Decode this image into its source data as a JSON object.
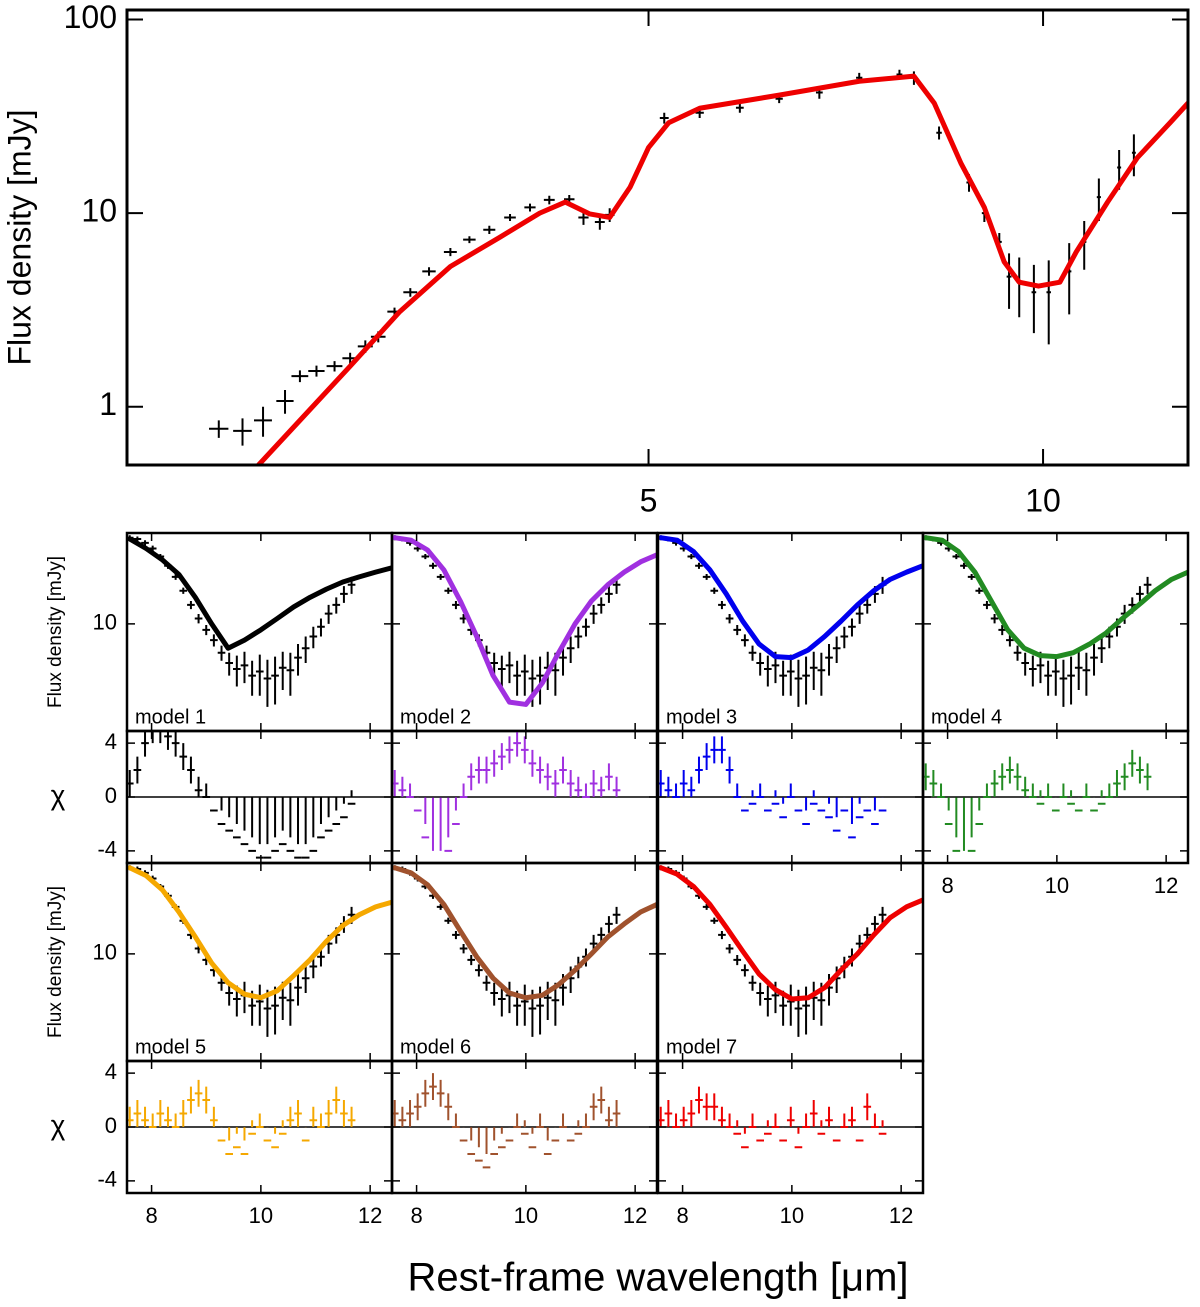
{
  "chart_data": [
    {
      "type": "sed",
      "ylabel": "Flux density [mJy]",
      "xscale": "log",
      "yscale": "log",
      "xlim": [
        2,
        12.9
      ],
      "ylim": [
        0.5,
        112
      ],
      "xticks": [
        5,
        10
      ],
      "yticks": [
        1,
        10,
        100
      ],
      "observed": {
        "color": "#000000",
        "xerr": 0.04,
        "x": [
          2.35,
          2.45,
          2.54,
          2.64,
          2.71,
          2.79,
          2.88,
          2.96,
          3.04,
          3.11,
          3.2,
          3.29,
          3.4,
          3.53,
          3.65,
          3.78,
          3.92,
          4.06,
          4.2,
          4.35,
          4.46,
          4.59,
          4.67,
          5.14,
          5.47,
          5.87,
          6.29,
          6.75,
          7.24,
          7.77,
          7.97,
          8.33,
          8.78,
          9.02,
          9.26,
          9.42,
          9.59,
          9.84,
          10.1,
          10.47,
          10.75,
          11.03,
          11.43,
          11.73
        ],
        "values": [
          0.77,
          0.75,
          0.85,
          1.07,
          1.44,
          1.53,
          1.62,
          1.78,
          2.05,
          2.3,
          3.1,
          3.9,
          5.0,
          6.3,
          7.3,
          8.2,
          9.5,
          10.7,
          11.7,
          11.8,
          9.5,
          9.0,
          9.8,
          31,
          33,
          35,
          39,
          42,
          50,
          52,
          50,
          26,
          14.4,
          10,
          7.1,
          4.7,
          4.4,
          3.9,
          3.9,
          5.0,
          7.1,
          12.1,
          17.2,
          20.5
        ],
        "errors": [
          0.08,
          0.12,
          0.15,
          0.15,
          0.1,
          0.1,
          0.1,
          0.12,
          0.15,
          0.15,
          0.15,
          0.2,
          0.25,
          0.3,
          0.3,
          0.4,
          0.4,
          0.5,
          0.6,
          0.6,
          0.8,
          0.8,
          0.8,
          2,
          2,
          2,
          2,
          3,
          3,
          3,
          4,
          2,
          1.5,
          1,
          0.8,
          1.5,
          1.5,
          1.5,
          1.8,
          2,
          2,
          3,
          4,
          5
        ]
      },
      "model": {
        "color": "#ee0000",
        "x": [
          2.52,
          2.71,
          2.96,
          3.23,
          3.53,
          3.85,
          4.13,
          4.32,
          4.51,
          4.67,
          4.84,
          5.0,
          5.18,
          5.47,
          6.29,
          7.24,
          7.97,
          8.26,
          8.66,
          9.02,
          9.34,
          9.59,
          9.92,
          10.3,
          10.6,
          11.2,
          11.8,
          12.5,
          12.9
        ],
        "values": [
          0.5,
          0.85,
          1.62,
          3.1,
          5.3,
          7.5,
          10,
          11.4,
          9.9,
          9.5,
          13.6,
          21.8,
          29.3,
          34.8,
          40.7,
          48,
          51,
          37,
          18,
          10.7,
          5.6,
          4.4,
          4.2,
          4.4,
          6.3,
          11.4,
          19.3,
          29.3,
          37
        ]
      }
    },
    {
      "type": "model-grid",
      "xlabel": "Rest-frame wavelength [μm]",
      "ylabel": "Flux density [mJy]",
      "chi_label": "χ",
      "xlim": [
        7.55,
        12.4
      ],
      "xticks": [
        8,
        10,
        12
      ],
      "yscale": "log",
      "ylim": [
        1.5,
        50
      ],
      "yticks": [
        10
      ],
      "chi_lim": [
        -4.9,
        4.9
      ],
      "chi_ticks": [
        4,
        0,
        -4
      ],
      "chi_error": 1,
      "observed": {
        "color": "#000000",
        "xerr": 0.07,
        "x": [
          7.6,
          7.74,
          7.88,
          8.02,
          8.16,
          8.3,
          8.44,
          8.58,
          8.72,
          8.86,
          9.0,
          9.14,
          9.28,
          9.42,
          9.56,
          9.7,
          9.84,
          9.98,
          10.12,
          10.26,
          10.4,
          10.54,
          10.68,
          10.82,
          10.96,
          11.1,
          11.24,
          11.38,
          11.52,
          11.66
        ],
        "values": [
          46,
          45,
          42,
          38,
          33,
          28,
          23,
          18,
          14,
          11,
          9,
          7.5,
          6,
          5,
          4.5,
          4.8,
          4,
          4.3,
          3.8,
          4,
          4.6,
          4.4,
          5.5,
          6.5,
          8,
          9.5,
          12,
          14,
          17,
          20
        ],
        "errors": [
          2,
          2,
          2,
          2,
          1.5,
          1.5,
          1.2,
          1,
          1,
          0.9,
          0.8,
          0.8,
          0.8,
          1,
          1.2,
          1.3,
          1.2,
          1.5,
          1.5,
          1.6,
          1.5,
          1.6,
          1.5,
          1.5,
          1.5,
          1.5,
          2,
          2,
          2.5,
          3
        ]
      },
      "model_x": [
        7.6,
        7.9,
        8.2,
        8.5,
        8.8,
        9.1,
        9.4,
        9.7,
        10,
        10.3,
        10.6,
        10.9,
        11.2,
        11.5,
        11.8,
        12.1,
        12.4
      ],
      "models": [
        {
          "name": "model 1",
          "color": "#000000",
          "values": [
            45,
            38,
            31,
            24,
            16,
            10,
            6.5,
            7.5,
            9,
            11,
            13.5,
            16,
            18.5,
            21,
            23,
            25,
            27
          ],
          "chi": [
            1,
            2,
            4,
            5,
            5,
            4.5,
            4,
            3,
            2,
            0.5,
            0,
            -1,
            -2,
            -2.5,
            -3,
            -3.5,
            -4,
            -4.5,
            -4.5,
            -4,
            -3.5,
            -4,
            -4.5,
            -4.5,
            -4,
            -3,
            -2.5,
            -2,
            -1.5,
            -0.5
          ]
        },
        {
          "name": "model 2",
          "color": "#a030e0",
          "values": [
            46,
            44,
            37,
            26,
            15,
            8,
            4,
            2.5,
            2.4,
            3.5,
            6,
            10,
            15,
            20,
            25,
            30,
            34
          ],
          "chi": [
            1,
            0.5,
            0,
            -1,
            -3,
            -5,
            -5,
            -4,
            -2,
            0,
            1.5,
            2,
            2,
            2.5,
            3,
            3.5,
            4,
            3.5,
            2.5,
            2,
            1.5,
            1,
            2,
            1,
            0.5,
            0,
            1,
            0.5,
            1.5,
            0.5
          ]
        },
        {
          "name": "model 3",
          "color": "#0000ee",
          "values": [
            46,
            44,
            36,
            26,
            17,
            10.5,
            7,
            5.6,
            5.5,
            6.3,
            8,
            10.5,
            14,
            18,
            22,
            25,
            28
          ],
          "chi": [
            1,
            0.5,
            0,
            1,
            0.5,
            2,
            3,
            3.5,
            3.5,
            2,
            0,
            -1,
            -0.5,
            0,
            -1,
            -0.5,
            -1.5,
            0,
            -1,
            -2,
            -0.5,
            -1,
            -1.5,
            -2.5,
            -1,
            -3,
            -1.5,
            -1,
            -2,
            -1
          ]
        },
        {
          "name": "model 4",
          "color": "#228b22",
          "values": [
            46,
            44,
            36,
            25,
            15,
            9,
            6.5,
            5.7,
            5.6,
            6,
            7,
            8.5,
            11,
            14,
            18,
            22,
            25
          ],
          "chi": [
            1.5,
            1,
            0,
            -2,
            -4,
            -5,
            -4,
            -2,
            0,
            1,
            1.5,
            2,
            1.5,
            0.5,
            0,
            -0.5,
            0,
            -1,
            0,
            -0.5,
            -1,
            0,
            -1,
            -0.5,
            0,
            1,
            1.5,
            2.5,
            2,
            1.5
          ]
        },
        {
          "name": "model 5",
          "color": "#f5a800",
          "values": [
            46,
            40,
            31,
            21,
            13.5,
            8.5,
            6,
            4.9,
            4.6,
            5.2,
            6.8,
            9,
            12.5,
            16.5,
            20,
            23,
            25
          ],
          "chi": [
            0.5,
            1,
            0.5,
            0,
            1,
            0.5,
            0,
            1,
            2,
            2.5,
            2,
            0.5,
            -1,
            -2,
            -1.5,
            -2,
            -0.5,
            0,
            -1,
            -1.5,
            -0.5,
            0.5,
            1,
            -1,
            0.5,
            0,
            1,
            2,
            1,
            0.5
          ]
        },
        {
          "name": "model 6",
          "color": "#a0522d",
          "values": [
            46,
            42,
            34,
            24,
            15,
            9.5,
            6.5,
            5,
            4.6,
            4.8,
            5.8,
            7.5,
            10,
            13.5,
            17,
            21,
            24
          ],
          "chi": [
            1,
            0.5,
            1,
            1.5,
            2.5,
            3,
            2.5,
            1.5,
            0,
            -1,
            -2,
            -2.5,
            -3,
            -2,
            -1.5,
            -1,
            0,
            -0.5,
            -1.5,
            0,
            -2,
            -1,
            0,
            -1,
            -0.5,
            0,
            1.5,
            2,
            0.5,
            1
          ]
        },
        {
          "name": "model 7",
          "color": "#ee0000",
          "values": [
            46,
            41,
            33,
            24,
            16,
            10.5,
            7,
            5.3,
            4.5,
            4.6,
            5.5,
            7.5,
            10,
            14,
            19,
            23,
            26
          ],
          "chi": [
            0.5,
            1,
            0,
            0.5,
            1,
            2,
            1.5,
            1.5,
            0.5,
            0,
            -0.5,
            -1.5,
            0,
            -1,
            -0.5,
            0,
            -1,
            0.5,
            -1.5,
            0,
            1,
            -0.5,
            0.5,
            -1,
            0,
            0.5,
            -1,
            1.5,
            0,
            -0.5
          ]
        }
      ]
    }
  ]
}
